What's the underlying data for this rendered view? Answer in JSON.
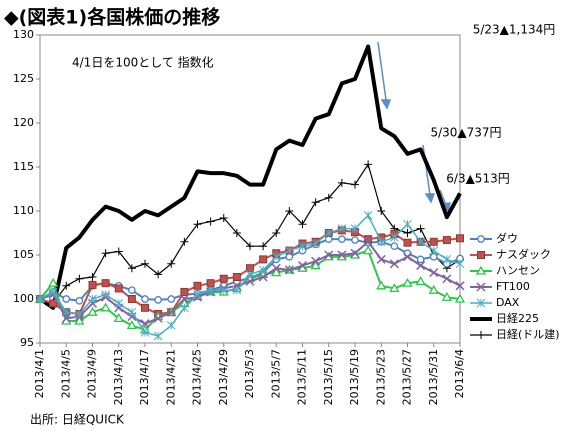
{
  "chart_data": {
    "type": "line",
    "title": "◆(図表1)各国株価の推移",
    "subtitle": "4/1日を100として 指数化",
    "source": "出所: 日経QUICK",
    "annotations": [
      "5/23▲1,134円",
      "5/30▲737円",
      "6/3▲513円"
    ],
    "categories": [
      "2013/4/1",
      null,
      "2013/4/5",
      null,
      "2013/4/9",
      null,
      "2013/4/13",
      null,
      "2013/4/17",
      null,
      "2013/4/21",
      null,
      "2013/4/25",
      null,
      "2013/4/29",
      null,
      "2013/5/3",
      null,
      "2013/5/7",
      null,
      "2013/5/11",
      null,
      "2013/5/15",
      null,
      "2013/5/19",
      null,
      "2013/5/23",
      null,
      "2013/5/27",
      null,
      "2013/5/31",
      null,
      "2013/6/4"
    ],
    "ylim": [
      95,
      130
    ],
    "yticks": [
      95,
      100,
      105,
      110,
      115,
      120,
      125,
      130
    ],
    "grid": false,
    "legend": "right",
    "series": [
      {
        "name": "ダウ",
        "color": "#4f81bd",
        "marker": "circle",
        "width": 2,
        "values": [
          100,
          100.8,
          100,
          99.8,
          101.5,
          101.8,
          101.5,
          101,
          100,
          99.9,
          100,
          100.5,
          100.6,
          101,
          101.5,
          102,
          102.4,
          103,
          104.5,
          104.8,
          105.5,
          106.2,
          106.8,
          106.8,
          106.7,
          106.4,
          106.5,
          106,
          105.2,
          104.5,
          104.8,
          104,
          104.6
        ]
      },
      {
        "name": "ナスダック",
        "color": "#c0504d",
        "marker": "square",
        "width": 2,
        "values": [
          100,
          99.5,
          98.5,
          98.3,
          101.6,
          101.8,
          101.2,
          100,
          99,
          98.3,
          98.5,
          100.8,
          101.5,
          101.8,
          102.3,
          102.5,
          103.5,
          104.5,
          105.2,
          105.5,
          106.3,
          106.5,
          107.5,
          107.8,
          107.6,
          106.8,
          107,
          107.4,
          106.4,
          106.5,
          106.5,
          106.7,
          106.9
        ]
      },
      {
        "name": "ハンセン",
        "color": "#2fc44a",
        "marker": "triangle",
        "width": 2,
        "values": [
          100,
          101.8,
          97.5,
          97.5,
          98.5,
          99,
          97.8,
          97,
          96.5,
          98,
          98.5,
          99.5,
          100.3,
          100.8,
          100.8,
          101.2,
          102.3,
          102.8,
          103,
          103.3,
          103.5,
          103.8,
          104.8,
          104.8,
          105,
          105.5,
          101.5,
          101.2,
          101.8,
          102,
          101,
          100.2,
          100
        ]
      },
      {
        "name": "FT100",
        "color": "#8064a2",
        "marker": "x",
        "width": 2,
        "values": [
          100,
          100.5,
          97.8,
          98,
          99.5,
          100.2,
          99,
          98,
          97.2,
          97.8,
          98.5,
          100,
          100.2,
          100.8,
          101.2,
          101.5,
          102,
          102.5,
          103.5,
          103.3,
          103.8,
          104.3,
          105,
          105,
          105.2,
          106.5,
          104.5,
          104,
          104.8,
          103.8,
          103,
          102.3,
          101.5
        ]
      },
      {
        "name": "DAX",
        "color": "#4bacc6",
        "marker": "star",
        "width": 1.5,
        "values": [
          100,
          100.8,
          98.5,
          98.3,
          100,
          100.5,
          99.5,
          98.5,
          96.2,
          95.8,
          97,
          99,
          100.5,
          101,
          101,
          101,
          102.8,
          103.3,
          104.8,
          105.5,
          106,
          106.3,
          107.5,
          108,
          108,
          109.5,
          106.5,
          107,
          108.5,
          106.5,
          105.5,
          104.5,
          104
        ]
      },
      {
        "name": "日経225",
        "color": "#000000",
        "marker": "none",
        "width": 4,
        "values": [
          100,
          99,
          105.8,
          107,
          109,
          110.5,
          110,
          109,
          110,
          109.5,
          110.5,
          111.5,
          114.5,
          114.3,
          114.3,
          114,
          113,
          113,
          117,
          118,
          117.5,
          120.5,
          121,
          124.5,
          125,
          128.7,
          119.4,
          118.5,
          116.5,
          117,
          113.5,
          109.3,
          112
        ]
      },
      {
        "name": "日経(ドル建)",
        "color": "#000000",
        "marker": "plus",
        "width": 1.2,
        "values": [
          100,
          99.5,
          101.5,
          102.3,
          102.5,
          105.2,
          105.4,
          103.5,
          104,
          102.8,
          104,
          106.5,
          108.5,
          108.8,
          109.2,
          107.5,
          106,
          106,
          107.5,
          110,
          108.5,
          111,
          111.5,
          113.2,
          113,
          115.3,
          110,
          108,
          107.5,
          108,
          105,
          103.5,
          104.5
        ]
      }
    ]
  }
}
